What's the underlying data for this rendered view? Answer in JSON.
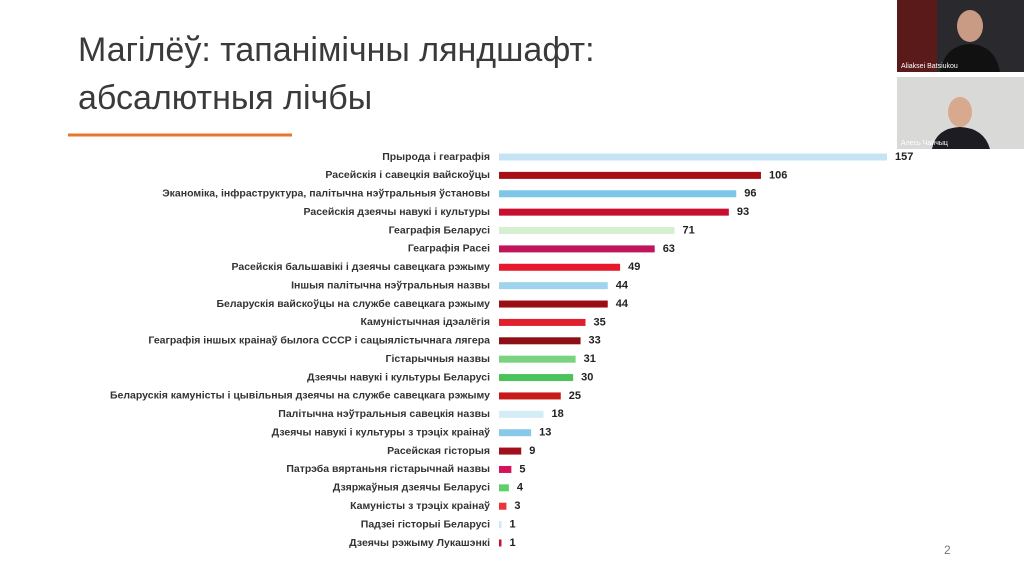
{
  "slide": {
    "title_lines": [
      "Магілёў: тапанімічны ляндшафт:",
      "абсалютныя лічбы"
    ],
    "page_number": 2
  },
  "participants": [
    "Aliaksei Batsiukou",
    "Алесь Чайчыц"
  ],
  "chart_data": {
    "type": "bar",
    "orientation": "horizontal",
    "categories": [
      "Прырода і геаграфія",
      "Расейскія і савецкія вайскоўцы",
      "Эканоміка, інфраструктура, палітычна нэўтральныя ўстановы",
      "Расейскія дзеячы навукі і культуры",
      "Геаграфія Беларусі",
      "Геаграфія Расеі",
      "Расейскія бальшавікі і дзеячы савецкага рэжыму",
      "Іншыя палітычна нэўтральныя назвы",
      "Беларускія вайскоўцы на службе савецкага рэжыму",
      "Камуністычная ідэалёгія",
      "Геаграфія іншых краінаў былога СССР і сацыялістычнага лягера",
      "Гістарычныя назвы",
      "Дзеячы навукі і культуры Беларусі",
      "Беларускія камуністы і цывільныя дзеячы на службе савецкага рэжыму",
      "Палітычна нэўтральныя савецкія назвы",
      "Дзеячы навукі і культуры з трэціх краінаў",
      "Расейская гісторыя",
      "Патрэба вяртаньня гістарычнай назвы",
      "Дзяржаўныя дзеячы Беларусі",
      "Камуністы з трэціх краінаў",
      "Падзеі гісторыі Беларусі",
      "Дзеячы рэжыму Лукашэнкі"
    ],
    "values": [
      157,
      106,
      96,
      93,
      71,
      63,
      49,
      44,
      44,
      35,
      33,
      31,
      30,
      25,
      18,
      13,
      9,
      5,
      4,
      3,
      1,
      1
    ],
    "colors": [
      "#c5e4f3",
      "#a50f15",
      "#7cc6ea",
      "#c8102e",
      "#d6efd0",
      "#c0155a",
      "#e8192c",
      "#9fd3ee",
      "#9b0d12",
      "#e0202c",
      "#8b0f14",
      "#79d37f",
      "#4cc35a",
      "#c71a1a",
      "#d4ecf6",
      "#87c9ea",
      "#a0101c",
      "#d4145a",
      "#5fcf6a",
      "#e8363a",
      "#cfe8f4",
      "#c8102e"
    ]
  }
}
